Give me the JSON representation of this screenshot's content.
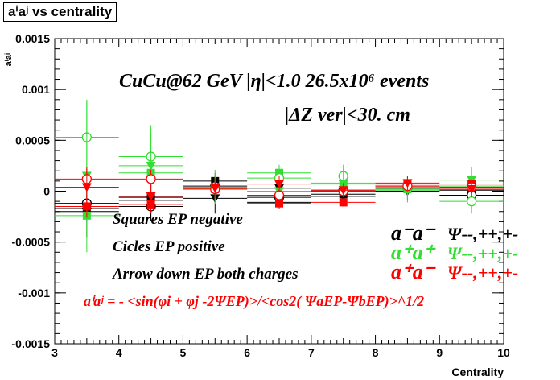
{
  "chart_data": {
    "type": "scatter",
    "title": "aⁱaʲ vs centrality",
    "xlabel": "Centrality",
    "ylabel": "aⁱaʲ",
    "xlim": [
      3,
      10
    ],
    "ylim": [
      -0.0015,
      0.0015
    ],
    "x_ticks": [
      "3",
      "4",
      "5",
      "6",
      "7",
      "8",
      "9",
      "10"
    ],
    "y_ticks": [
      "0.0015",
      "0.001",
      "0.0005",
      "0",
      "-0.0005",
      "-0.001",
      "-0.0015"
    ],
    "grid": false,
    "annotations": {
      "header1": "CuCu@62 GeV |η|<1.0 26.5x10⁶ events",
      "header2": "|ΔZ ver|<30. cm",
      "legend_squares": "Squares EP negative",
      "legend_circles": "Cicles EP positive",
      "legend_arrows": "Arrow down EP both charges",
      "formula": "aⁱaʲ = - <sin(φi + φj -2ΨEP)>/<cos2( ΨaEP-ΨbEP)>^1/2"
    },
    "species_legend": [
      {
        "label": "a⁻a⁻",
        "psi": "Ψ--,++,+-",
        "color": "#000000"
      },
      {
        "label": "a⁺a⁺",
        "psi": "Ψ--,++,+-",
        "color": "#33dd33"
      },
      {
        "label": "a⁺a⁻",
        "psi": "Ψ--,++,+-",
        "color": "#ff0000"
      }
    ],
    "series": [
      {
        "charge": "a⁻a⁻",
        "marker": "square",
        "color": "#000000",
        "x": [
          3.5,
          4.5,
          5.5,
          6.5,
          7.5,
          8.5,
          9.5
        ],
        "y": [
          -0.00017,
          -6e-05,
          0.0001,
          -0.00011,
          -3e-05,
          5e-05,
          1e-05
        ],
        "err": [
          0.00012,
          9e-05,
          8e-05,
          6e-05,
          5e-05,
          5e-05,
          6e-05
        ]
      },
      {
        "charge": "a⁻a⁻",
        "marker": "circle",
        "color": "#000000",
        "x": [
          3.5,
          4.5,
          5.5,
          6.5,
          7.5,
          8.5,
          9.5
        ],
        "y": [
          -0.00012,
          -0.00015,
          5e-05,
          -6e-05,
          1e-05,
          3e-05,
          -4e-05
        ],
        "err": [
          0.00015,
          0.00012,
          0.0001,
          7e-05,
          6e-05,
          6e-05,
          7e-05
        ]
      },
      {
        "charge": "a⁻a⁻",
        "marker": "triangle-down",
        "color": "#000000",
        "x": [
          3.5,
          4.5,
          5.5,
          6.5,
          7.5,
          8.5,
          9.5
        ],
        "y": [
          -0.0002,
          -9e-05,
          -7e-05,
          3e-05,
          -5e-05,
          0.0,
          2e-05
        ],
        "err": [
          0.00025,
          0.0002,
          0.00015,
          0.0001,
          9e-05,
          9e-05,
          0.0001
        ]
      },
      {
        "charge": "a⁺a⁺",
        "marker": "square",
        "color": "#33dd33",
        "x": [
          3.5,
          4.5,
          5.5,
          6.5,
          7.5,
          8.5,
          9.5
        ],
        "y": [
          -0.00024,
          0.00018,
          3e-05,
          0.00018,
          8e-05,
          2e-05,
          5e-05
        ],
        "err": [
          0.0002,
          0.00015,
          0.0001,
          8e-05,
          7e-05,
          7e-05,
          8e-05
        ]
      },
      {
        "charge": "a⁺a⁺",
        "marker": "circle",
        "color": "#33dd33",
        "x": [
          3.5,
          4.5,
          5.5,
          6.5,
          7.5,
          8.5,
          9.5
        ],
        "y": [
          0.00053,
          0.00034,
          3e-05,
          0.00013,
          0.00015,
          4e-05,
          -0.0001
        ],
        "err": [
          0.00035,
          0.00023,
          0.00015,
          0.00012,
          0.00011,
          0.00011,
          0.00012
        ]
      },
      {
        "charge": "a⁺a⁺",
        "marker": "triangle-down",
        "color": "#33dd33",
        "x": [
          3.5,
          4.5,
          5.5,
          6.5,
          7.5,
          8.5,
          9.5
        ],
        "y": [
          0.00015,
          0.00025,
          4e-05,
          0.0,
          7e-05,
          1e-05,
          0.00011
        ],
        "err": [
          0.00075,
          0.0004,
          0.00017,
          0.00013,
          0.00012,
          0.00012,
          0.00013
        ]
      },
      {
        "charge": "a⁺a⁻",
        "marker": "square",
        "color": "#ff0000",
        "x": [
          3.5,
          4.5,
          5.5,
          6.5,
          7.5,
          8.5,
          9.5
        ],
        "y": [
          -0.00015,
          -0.00013,
          2e-05,
          -0.00012,
          -0.00011,
          7e-05,
          7e-05
        ],
        "err": [
          0.00011,
          8e-05,
          6e-05,
          5e-05,
          4e-05,
          4e-05,
          4e-05
        ]
      },
      {
        "charge": "a⁺a⁻",
        "marker": "circle",
        "color": "#ff0000",
        "x": [
          3.5,
          4.5,
          5.5,
          6.5,
          7.5,
          8.5,
          9.5
        ],
        "y": [
          0.00012,
          0.00012,
          2e-05,
          -4e-05,
          0.0,
          5e-05,
          4e-05
        ],
        "err": [
          0.00012,
          9e-05,
          7e-05,
          6e-05,
          5e-05,
          5e-05,
          5e-05
        ]
      },
      {
        "charge": "a⁺a⁻",
        "marker": "triangle-down",
        "color": "#ff0000",
        "x": [
          3.5,
          4.5,
          5.5,
          6.5,
          7.5,
          8.5,
          9.5
        ],
        "y": [
          4e-05,
          -5e-05,
          3e-05,
          7e-05,
          1e-05,
          8e-05,
          2e-05
        ],
        "err": [
          0.00018,
          0.00013,
          0.0001,
          8e-05,
          7e-05,
          7e-05,
          8e-05
        ]
      }
    ]
  }
}
